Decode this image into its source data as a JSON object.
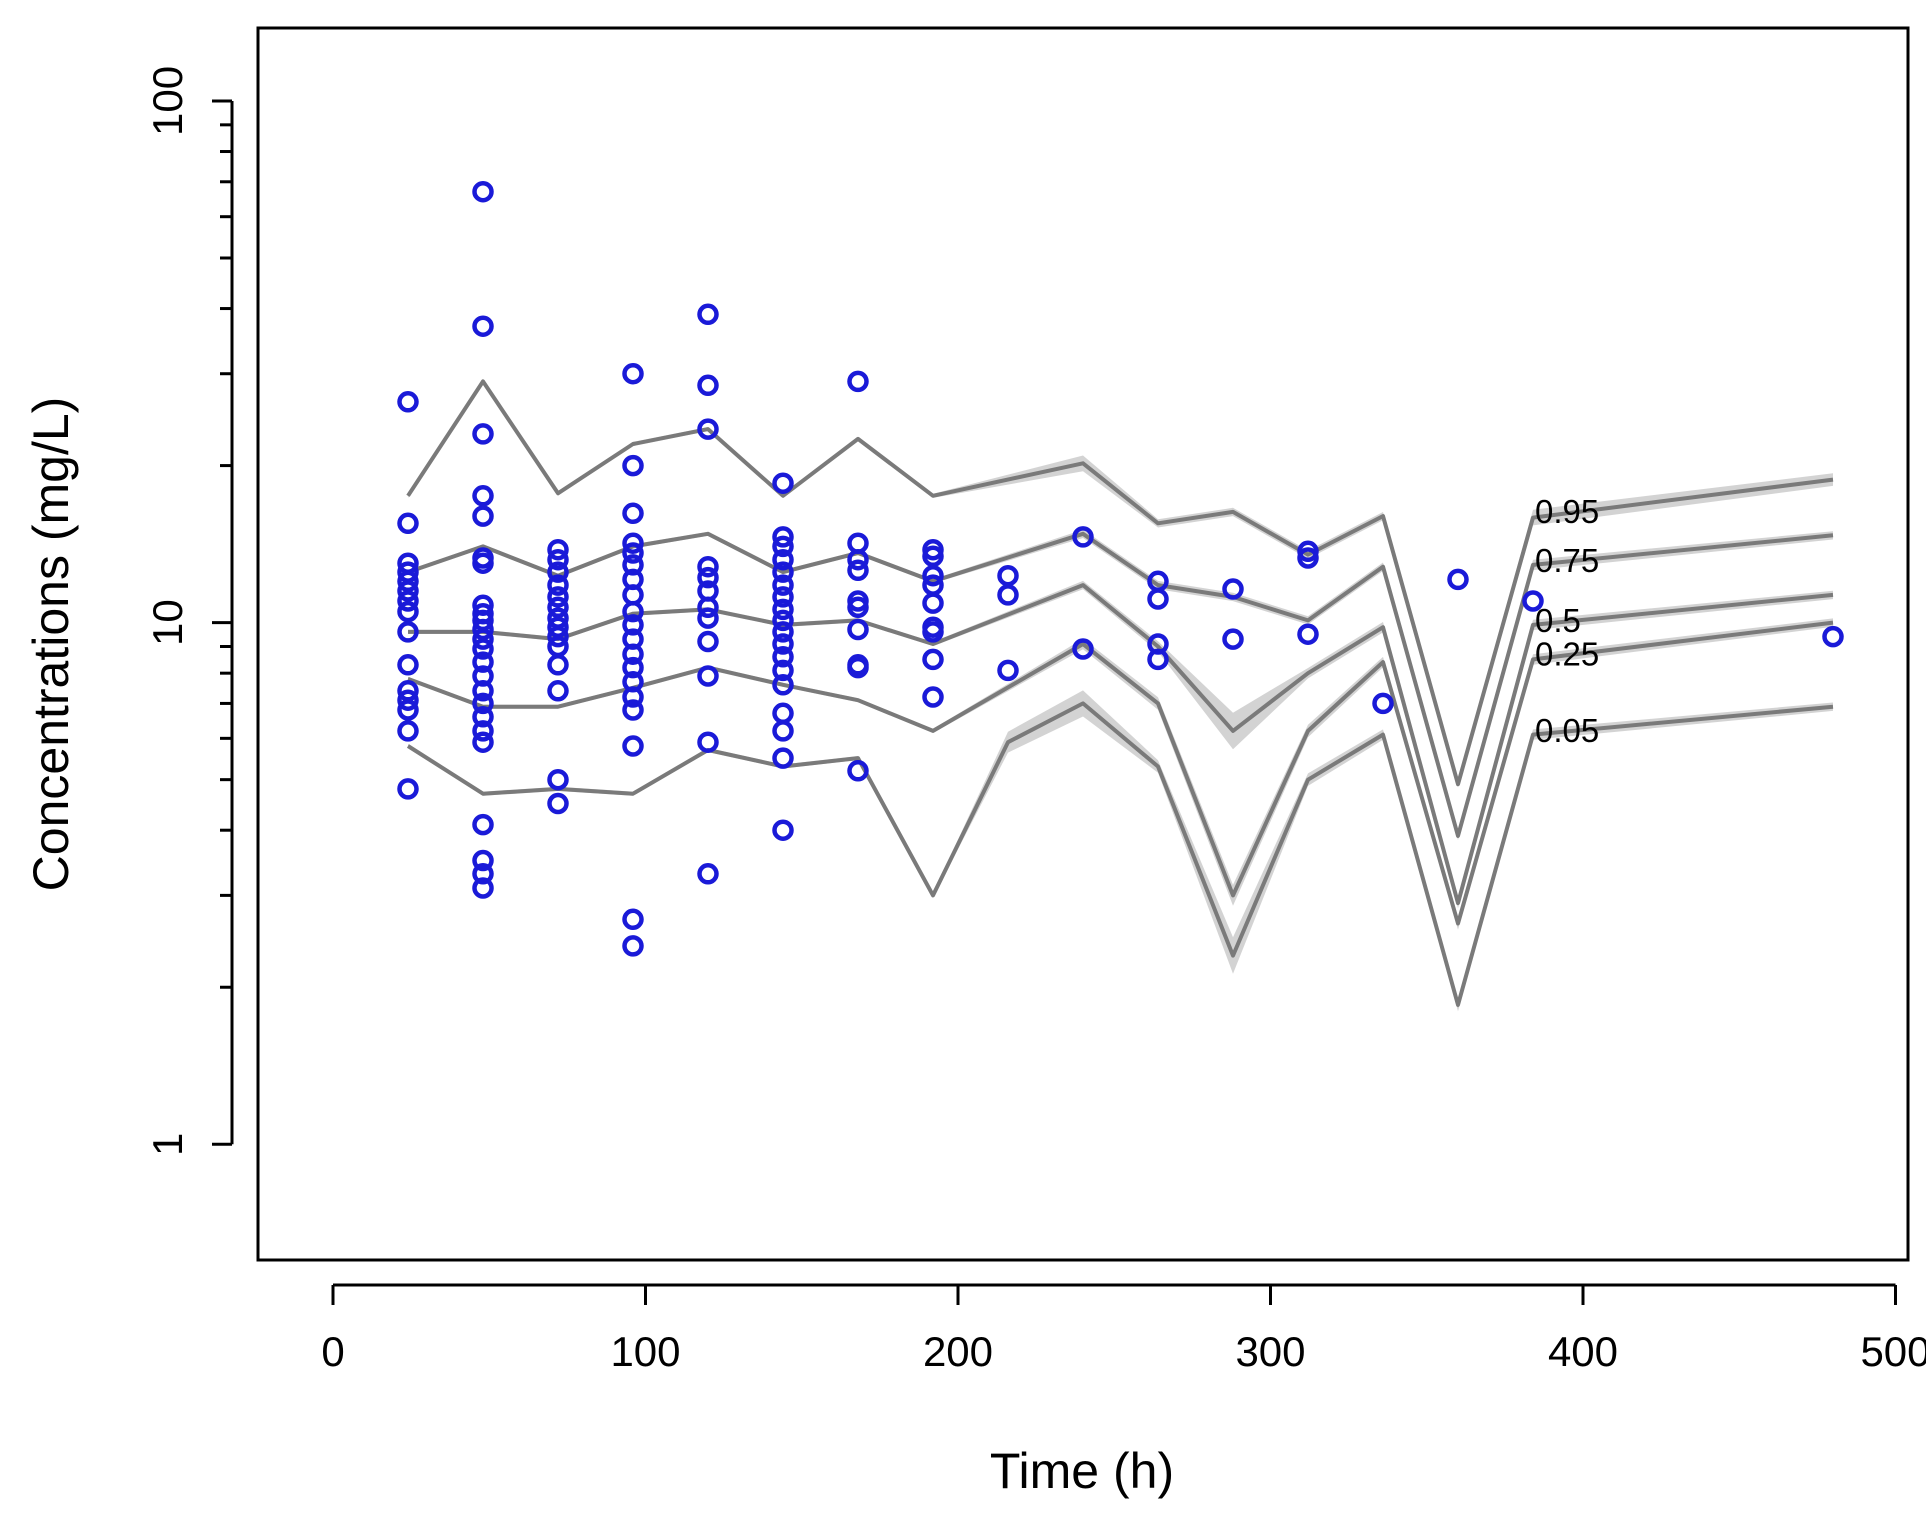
{
  "chart_data": {
    "type": "scatter",
    "title": "",
    "xlabel": "Time (h)",
    "ylabel": "Concentrations (mg/L)",
    "xlim": [
      -24,
      504
    ],
    "ylim": [
      0.6,
      138
    ],
    "yscale": "log",
    "xticks": [
      0,
      100,
      200,
      300,
      400,
      500
    ],
    "xtick_labels": [
      "0",
      "100",
      "200",
      "300",
      "400",
      "500"
    ],
    "yticks": [
      1,
      10,
      100
    ],
    "ytick_labels": [
      "1",
      "10",
      "100"
    ],
    "colors": {
      "observed": "#1a1ad8",
      "quantile_line": "#7a7a7a",
      "quantile_band": "#c4c4c4"
    },
    "observed": [
      {
        "x": 24,
        "y": 26.5
      },
      {
        "x": 24,
        "y": 15.5
      },
      {
        "x": 24,
        "y": 13
      },
      {
        "x": 24,
        "y": 12.5
      },
      {
        "x": 24,
        "y": 12
      },
      {
        "x": 24,
        "y": 11.5
      },
      {
        "x": 24,
        "y": 11
      },
      {
        "x": 24,
        "y": 10.5
      },
      {
        "x": 24,
        "y": 9.6
      },
      {
        "x": 24,
        "y": 8.3
      },
      {
        "x": 24,
        "y": 7.4
      },
      {
        "x": 24,
        "y": 7.1
      },
      {
        "x": 24,
        "y": 6.8
      },
      {
        "x": 24,
        "y": 6.2
      },
      {
        "x": 24,
        "y": 4.8
      },
      {
        "x": 48,
        "y": 67
      },
      {
        "x": 48,
        "y": 37
      },
      {
        "x": 48,
        "y": 23
      },
      {
        "x": 48,
        "y": 17.5
      },
      {
        "x": 48,
        "y": 16
      },
      {
        "x": 48,
        "y": 13.3
      },
      {
        "x": 48,
        "y": 13
      },
      {
        "x": 48,
        "y": 10.8
      },
      {
        "x": 48,
        "y": 10.4
      },
      {
        "x": 48,
        "y": 10.1
      },
      {
        "x": 48,
        "y": 9.7
      },
      {
        "x": 48,
        "y": 9.3
      },
      {
        "x": 48,
        "y": 8.9
      },
      {
        "x": 48,
        "y": 8.4
      },
      {
        "x": 48,
        "y": 7.9
      },
      {
        "x": 48,
        "y": 7.4
      },
      {
        "x": 48,
        "y": 7
      },
      {
        "x": 48,
        "y": 6.6
      },
      {
        "x": 48,
        "y": 6.2
      },
      {
        "x": 48,
        "y": 5.9
      },
      {
        "x": 48,
        "y": 4.1
      },
      {
        "x": 48,
        "y": 3.5
      },
      {
        "x": 48,
        "y": 3.3
      },
      {
        "x": 48,
        "y": 3.1
      },
      {
        "x": 72,
        "y": 13.8
      },
      {
        "x": 72,
        "y": 13.2
      },
      {
        "x": 72,
        "y": 12.5
      },
      {
        "x": 72,
        "y": 11.8
      },
      {
        "x": 72,
        "y": 11.2
      },
      {
        "x": 72,
        "y": 10.7
      },
      {
        "x": 72,
        "y": 10.2
      },
      {
        "x": 72,
        "y": 9.8
      },
      {
        "x": 72,
        "y": 9.4
      },
      {
        "x": 72,
        "y": 9
      },
      {
        "x": 72,
        "y": 8.3
      },
      {
        "x": 72,
        "y": 7.4
      },
      {
        "x": 72,
        "y": 5
      },
      {
        "x": 72,
        "y": 4.5
      },
      {
        "x": 96,
        "y": 30
      },
      {
        "x": 96,
        "y": 20
      },
      {
        "x": 96,
        "y": 16.2
      },
      {
        "x": 96,
        "y": 14.2
      },
      {
        "x": 96,
        "y": 13.6
      },
      {
        "x": 96,
        "y": 12.9
      },
      {
        "x": 96,
        "y": 12.1
      },
      {
        "x": 96,
        "y": 11.3
      },
      {
        "x": 96,
        "y": 10.5
      },
      {
        "x": 96,
        "y": 9.9
      },
      {
        "x": 96,
        "y": 9.3
      },
      {
        "x": 96,
        "y": 8.7
      },
      {
        "x": 96,
        "y": 8.2
      },
      {
        "x": 96,
        "y": 7.7
      },
      {
        "x": 96,
        "y": 7.2
      },
      {
        "x": 96,
        "y": 6.8
      },
      {
        "x": 96,
        "y": 5.8
      },
      {
        "x": 96,
        "y": 2.7
      },
      {
        "x": 96,
        "y": 2.4
      },
      {
        "x": 120,
        "y": 39
      },
      {
        "x": 120,
        "y": 28.5
      },
      {
        "x": 120,
        "y": 23.5
      },
      {
        "x": 120,
        "y": 12.8
      },
      {
        "x": 120,
        "y": 12.2
      },
      {
        "x": 120,
        "y": 11.5
      },
      {
        "x": 120,
        "y": 10.7
      },
      {
        "x": 120,
        "y": 10.2
      },
      {
        "x": 120,
        "y": 9.2
      },
      {
        "x": 120,
        "y": 7.9
      },
      {
        "x": 120,
        "y": 5.9
      },
      {
        "x": 120,
        "y": 3.3
      },
      {
        "x": 144,
        "y": 18.5
      },
      {
        "x": 144,
        "y": 14.6
      },
      {
        "x": 144,
        "y": 14
      },
      {
        "x": 144,
        "y": 13.2
      },
      {
        "x": 144,
        "y": 12.5
      },
      {
        "x": 144,
        "y": 11.8
      },
      {
        "x": 144,
        "y": 11.2
      },
      {
        "x": 144,
        "y": 10.6
      },
      {
        "x": 144,
        "y": 10.1
      },
      {
        "x": 144,
        "y": 9.6
      },
      {
        "x": 144,
        "y": 9.1
      },
      {
        "x": 144,
        "y": 8.6
      },
      {
        "x": 144,
        "y": 8.1
      },
      {
        "x": 144,
        "y": 7.6
      },
      {
        "x": 144,
        "y": 6.7
      },
      {
        "x": 144,
        "y": 6.2
      },
      {
        "x": 144,
        "y": 5.5
      },
      {
        "x": 144,
        "y": 4
      },
      {
        "x": 168,
        "y": 29
      },
      {
        "x": 168,
        "y": 14.2
      },
      {
        "x": 168,
        "y": 13.2
      },
      {
        "x": 168,
        "y": 12.6
      },
      {
        "x": 168,
        "y": 11
      },
      {
        "x": 168,
        "y": 10.7
      },
      {
        "x": 168,
        "y": 9.7
      },
      {
        "x": 168,
        "y": 8.3
      },
      {
        "x": 168,
        "y": 8.2
      },
      {
        "x": 168,
        "y": 5.2
      },
      {
        "x": 192,
        "y": 13.8
      },
      {
        "x": 192,
        "y": 13.4
      },
      {
        "x": 192,
        "y": 12.3
      },
      {
        "x": 192,
        "y": 11.8
      },
      {
        "x": 192,
        "y": 10.9
      },
      {
        "x": 192,
        "y": 9.8
      },
      {
        "x": 192,
        "y": 9.6
      },
      {
        "x": 192,
        "y": 8.5
      },
      {
        "x": 192,
        "y": 7.2
      },
      {
        "x": 216,
        "y": 12.3
      },
      {
        "x": 216,
        "y": 11.3
      },
      {
        "x": 216,
        "y": 8.1
      },
      {
        "x": 240,
        "y": 14.6
      },
      {
        "x": 240,
        "y": 8.9
      },
      {
        "x": 264,
        "y": 12
      },
      {
        "x": 264,
        "y": 11.1
      },
      {
        "x": 264,
        "y": 9.1
      },
      {
        "x": 264,
        "y": 8.5
      },
      {
        "x": 288,
        "y": 11.6
      },
      {
        "x": 288,
        "y": 9.3
      },
      {
        "x": 312,
        "y": 13.7
      },
      {
        "x": 312,
        "y": 13.3
      },
      {
        "x": 312,
        "y": 9.5
      },
      {
        "x": 336,
        "y": 7
      },
      {
        "x": 360,
        "y": 12.1
      },
      {
        "x": 384,
        "y": 11
      },
      {
        "x": 480,
        "y": 9.4
      }
    ],
    "series": [
      {
        "name": "0.95",
        "x": [
          24,
          48,
          72,
          96,
          120,
          144,
          168,
          192,
          240,
          264,
          288,
          312,
          336,
          360,
          384,
          480
        ],
        "y": [
          17.5,
          29,
          17.7,
          22,
          23.5,
          17.5,
          22.5,
          17.5,
          20.2,
          15.5,
          16.3,
          13.5,
          16,
          4.9,
          15.9,
          18.8
        ],
        "band_halfwidth": [
          0.004,
          0.004,
          0.004,
          0.004,
          0.004,
          0.004,
          0.004,
          0.004,
          0.015,
          0.008,
          0.008,
          0.008,
          0.008,
          0.006,
          0.015,
          0.012
        ]
      },
      {
        "name": "0.75",
        "x": [
          24,
          48,
          72,
          96,
          120,
          144,
          168,
          192,
          240,
          264,
          288,
          312,
          336,
          360,
          384,
          480
        ],
        "y": [
          12.5,
          14,
          12.3,
          14,
          14.8,
          12.5,
          13.6,
          12,
          14.8,
          11.8,
          11.2,
          10.1,
          12.8,
          3.9,
          12.9,
          14.7
        ],
        "band_halfwidth": [
          0.004,
          0.004,
          0.004,
          0.004,
          0.004,
          0.004,
          0.004,
          0.004,
          0.008,
          0.008,
          0.008,
          0.008,
          0.008,
          0.008,
          0.01,
          0.008
        ]
      },
      {
        "name": "0.5",
        "x": [
          24,
          48,
          72,
          96,
          120,
          144,
          168,
          192,
          240,
          264,
          288,
          312,
          336,
          360,
          384,
          480
        ],
        "y": [
          9.6,
          9.6,
          9.3,
          10.4,
          10.6,
          9.9,
          10.1,
          9.1,
          11.8,
          9,
          6.2,
          8,
          9.8,
          2.9,
          9.9,
          11.3
        ],
        "band_halfwidth": [
          0.004,
          0.004,
          0.004,
          0.004,
          0.004,
          0.004,
          0.004,
          0.004,
          0.008,
          0.01,
          0.035,
          0.01,
          0.01,
          0.01,
          0.01,
          0.008
        ]
      },
      {
        "name": "0.25",
        "x": [
          24,
          48,
          72,
          96,
          120,
          144,
          168,
          192,
          240,
          264,
          288,
          312,
          336,
          360,
          384,
          480
        ],
        "y": [
          7.8,
          6.9,
          6.9,
          7.5,
          8.2,
          7.6,
          7.1,
          6.2,
          9.1,
          7,
          3,
          6.2,
          8.4,
          2.65,
          8.5,
          10
        ],
        "band_halfwidth": [
          0.004,
          0.004,
          0.004,
          0.004,
          0.004,
          0.004,
          0.004,
          0.004,
          0.01,
          0.012,
          0.02,
          0.012,
          0.01,
          0.012,
          0.01,
          0.008
        ]
      },
      {
        "name": "0.05",
        "x": [
          24,
          48,
          72,
          96,
          120,
          144,
          168,
          192,
          216,
          240,
          264,
          288,
          312,
          336,
          360,
          384,
          480
        ],
        "y": [
          5.8,
          4.7,
          4.8,
          4.7,
          5.7,
          5.3,
          5.5,
          3,
          5.9,
          7,
          5.3,
          2.3,
          5,
          6.1,
          1.85,
          6.1,
          6.9
        ],
        "band_halfwidth": [
          0.004,
          0.004,
          0.004,
          0.004,
          0.004,
          0.004,
          0.004,
          0.004,
          0.02,
          0.025,
          0.012,
          0.035,
          0.012,
          0.01,
          0.012,
          0.01,
          0.008
        ]
      }
    ],
    "annotations": [
      "0.95",
      "0.75",
      "0.5",
      "0.25",
      "0.05"
    ]
  }
}
